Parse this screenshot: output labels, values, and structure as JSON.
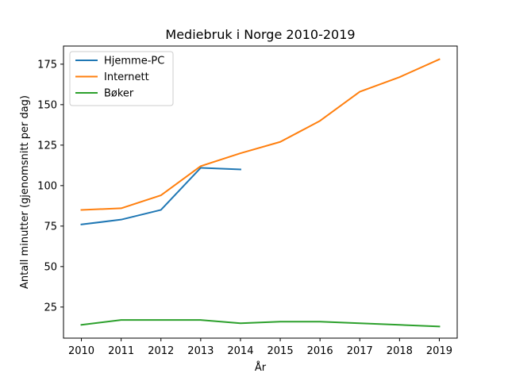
{
  "chart_data": {
    "type": "line",
    "title": "Mediebruk i Norge 2010-2019",
    "xlabel": "År",
    "ylabel": "Antall minutter (gjenomsnitt per dag)",
    "x": [
      2010,
      2011,
      2012,
      2013,
      2014,
      2015,
      2016,
      2017,
      2018,
      2019
    ],
    "xlim": [
      2009.55,
      2019.45
    ],
    "ylim": [
      5.8,
      186.2
    ],
    "xticks": [
      2010,
      2011,
      2012,
      2013,
      2014,
      2015,
      2016,
      2017,
      2018,
      2019
    ],
    "yticks": [
      25,
      50,
      75,
      100,
      125,
      150,
      175
    ],
    "grid": false,
    "legend_position": "top-left",
    "series": [
      {
        "name": "Hjemme-PC",
        "color": "#1f77b4",
        "values": [
          76,
          79,
          85,
          111,
          110,
          null,
          null,
          null,
          null,
          null
        ]
      },
      {
        "name": "Internett",
        "color": "#ff7f0e",
        "values": [
          85,
          86,
          94,
          112,
          120,
          127,
          140,
          158,
          167,
          178
        ]
      },
      {
        "name": "Bøker",
        "color": "#2ca02c",
        "values": [
          14,
          17,
          17,
          17,
          15,
          16,
          16,
          15,
          14,
          13
        ]
      }
    ]
  }
}
